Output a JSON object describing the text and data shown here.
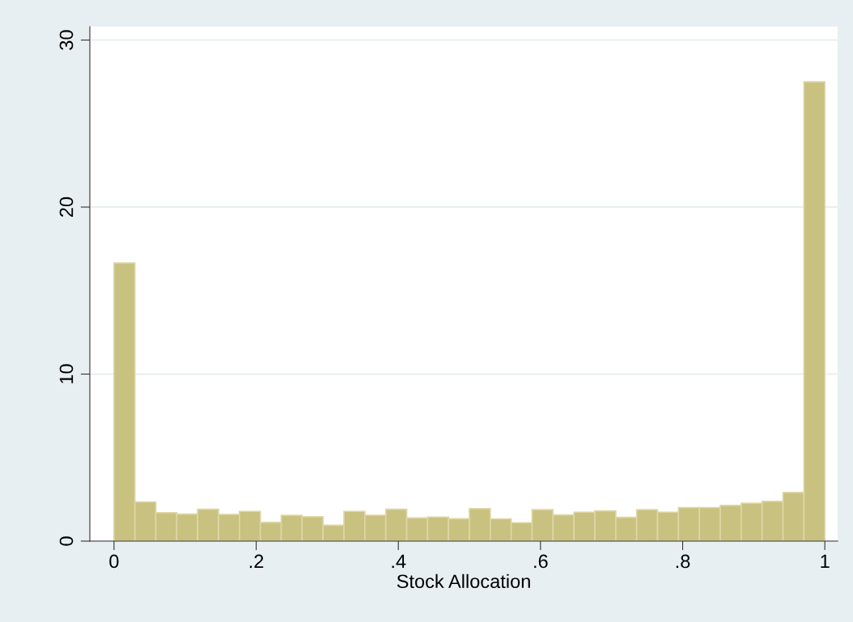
{
  "chart_data": {
    "type": "histogram",
    "xlabel": "Stock Allocation",
    "bins": [
      0,
      0.0294,
      0.0588,
      0.0882,
      0.1176,
      0.1471,
      0.1765,
      0.2059,
      0.2353,
      0.2647,
      0.2941,
      0.3235,
      0.3529,
      0.3824,
      0.4118,
      0.4412,
      0.4706,
      0.5,
      0.5294,
      0.5588,
      0.5882,
      0.6176,
      0.6471,
      0.6765,
      0.7059,
      0.7353,
      0.7647,
      0.7941,
      0.8235,
      0.8529,
      0.8824,
      0.9118,
      0.9412,
      0.9706,
      1
    ],
    "values": [
      16.65,
      2.35,
      1.7,
      1.62,
      1.91,
      1.6,
      1.78,
      1.12,
      1.54,
      1.46,
      0.95,
      1.78,
      1.55,
      1.91,
      1.39,
      1.44,
      1.34,
      1.94,
      1.33,
      1.1,
      1.88,
      1.57,
      1.73,
      1.81,
      1.42,
      1.88,
      1.73,
      2.01,
      2.01,
      2.14,
      2.27,
      2.38,
      2.91,
      27.5
    ],
    "color": "#c9c17f",
    "xlim": [
      -0.034,
      1.018
    ],
    "ylim": [
      0,
      30.8
    ],
    "xticks": [
      0,
      {
        "value": 0.2,
        "label": ".2"
      },
      {
        "value": 0.4,
        "label": ".4"
      },
      {
        "value": 0.6,
        "label": ".6"
      },
      {
        "value": 0.8,
        "label": ".8"
      },
      1
    ],
    "yticks": [
      0,
      10,
      20,
      30
    ],
    "grid": "y"
  }
}
